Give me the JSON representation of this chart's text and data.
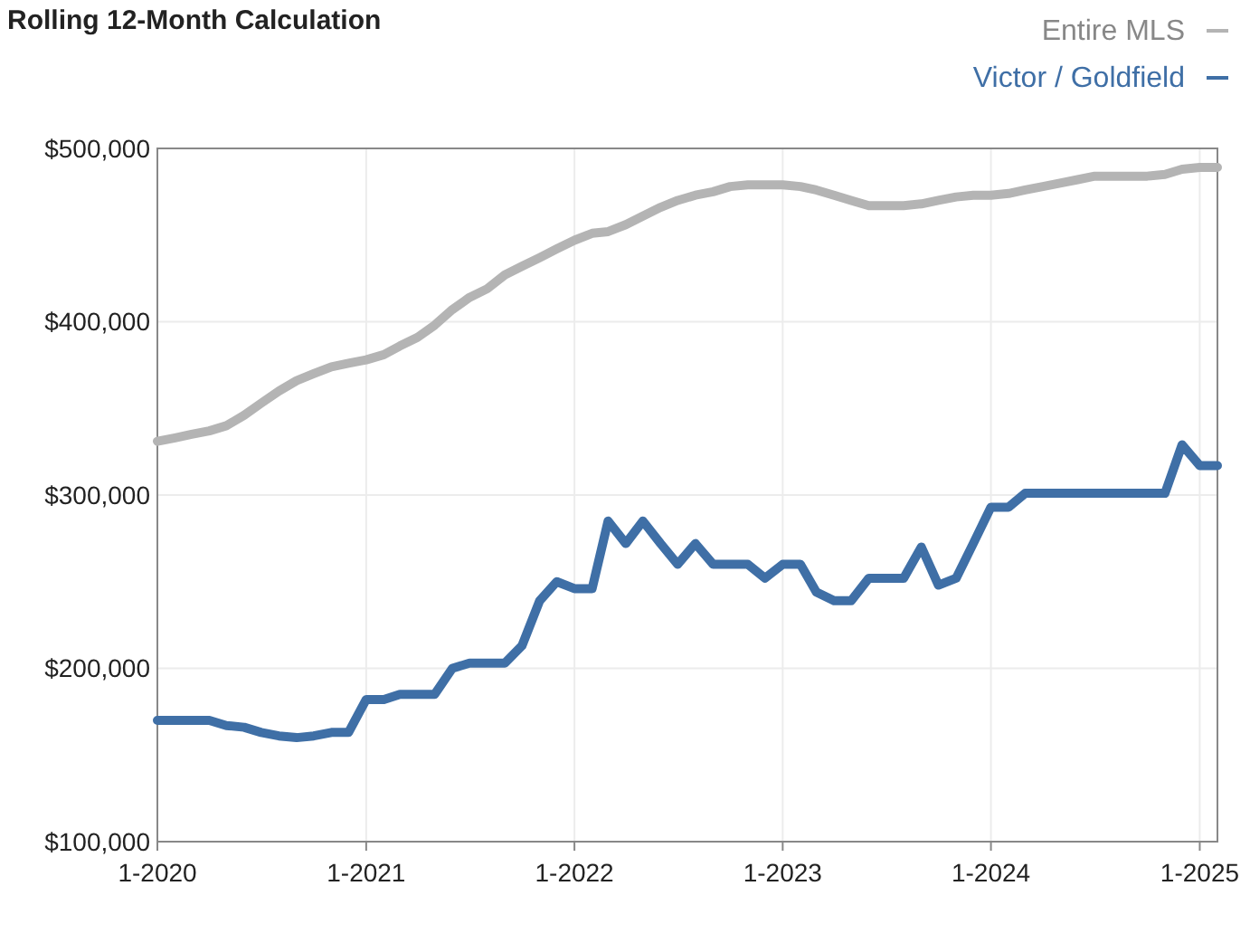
{
  "chart_data": {
    "type": "line",
    "title": "Rolling 12-Month Calculation",
    "x": [
      "2020-01",
      "2020-02",
      "2020-03",
      "2020-04",
      "2020-05",
      "2020-06",
      "2020-07",
      "2020-08",
      "2020-09",
      "2020-10",
      "2020-11",
      "2020-12",
      "2021-01",
      "2021-02",
      "2021-03",
      "2021-04",
      "2021-05",
      "2021-06",
      "2021-07",
      "2021-08",
      "2021-09",
      "2021-10",
      "2021-11",
      "2021-12",
      "2022-01",
      "2022-02",
      "2022-03",
      "2022-04",
      "2022-05",
      "2022-06",
      "2022-07",
      "2022-08",
      "2022-09",
      "2022-10",
      "2022-11",
      "2022-12",
      "2023-01",
      "2023-02",
      "2023-03",
      "2023-04",
      "2023-05",
      "2023-06",
      "2023-07",
      "2023-08",
      "2023-09",
      "2023-10",
      "2023-11",
      "2023-12",
      "2024-01",
      "2024-02",
      "2024-03",
      "2024-04",
      "2024-05",
      "2024-06",
      "2024-07",
      "2024-08",
      "2024-09",
      "2024-10",
      "2024-11",
      "2024-12",
      "2025-01",
      "2025-02"
    ],
    "series": [
      {
        "name": "Entire MLS",
        "color": "#b4b4b4",
        "values": [
          331000,
          333000,
          335000,
          337000,
          340000,
          346000,
          353000,
          360000,
          366000,
          370000,
          374000,
          376000,
          378000,
          381000,
          386000,
          391000,
          398000,
          407000,
          414000,
          419000,
          427000,
          432000,
          437000,
          442000,
          447000,
          451000,
          452000,
          456000,
          461000,
          466000,
          470000,
          473000,
          475000,
          478000,
          479000,
          479000,
          479000,
          478000,
          476000,
          473000,
          470000,
          467000,
          467000,
          467000,
          468000,
          470000,
          472000,
          473000,
          473000,
          474000,
          476000,
          478000,
          480000,
          482000,
          484000,
          484000,
          484000,
          484000,
          485000,
          488000,
          489000,
          489000
        ]
      },
      {
        "name": "Victor / Goldfield",
        "color": "#3f6fa6",
        "values": [
          170000,
          170000,
          170000,
          170000,
          167000,
          166000,
          163000,
          161000,
          160000,
          161000,
          163000,
          163000,
          182000,
          182000,
          185000,
          185000,
          185000,
          200000,
          203000,
          203000,
          203000,
          213000,
          239000,
          250000,
          246000,
          246000,
          285000,
          272000,
          285000,
          272000,
          260000,
          272000,
          260000,
          260000,
          260000,
          252000,
          260000,
          260000,
          244000,
          239000,
          239000,
          252000,
          252000,
          252000,
          270000,
          248000,
          252000,
          272000,
          293000,
          293000,
          301000,
          301000,
          301000,
          301000,
          301000,
          301000,
          301000,
          301000,
          301000,
          329000,
          317000,
          317000
        ]
      }
    ],
    "xlim": [
      "2020-01",
      "2025-02"
    ],
    "xticks": [
      {
        "value": "2020-01",
        "label": "1-2020"
      },
      {
        "value": "2021-01",
        "label": "1-2021"
      },
      {
        "value": "2022-01",
        "label": "1-2022"
      },
      {
        "value": "2023-01",
        "label": "1-2023"
      },
      {
        "value": "2024-01",
        "label": "1-2024"
      },
      {
        "value": "2025-01",
        "label": "1-2025"
      }
    ],
    "ylim": [
      100000,
      500000
    ],
    "yticks": [
      {
        "value": 100000,
        "label": "$100,000"
      },
      {
        "value": 200000,
        "label": "$200,000"
      },
      {
        "value": 300000,
        "label": "$300,000"
      },
      {
        "value": 400000,
        "label": "$400,000"
      },
      {
        "value": 500000,
        "label": "$500,000"
      }
    ],
    "grid": true,
    "legend": "top right",
    "line_style": "solid"
  }
}
